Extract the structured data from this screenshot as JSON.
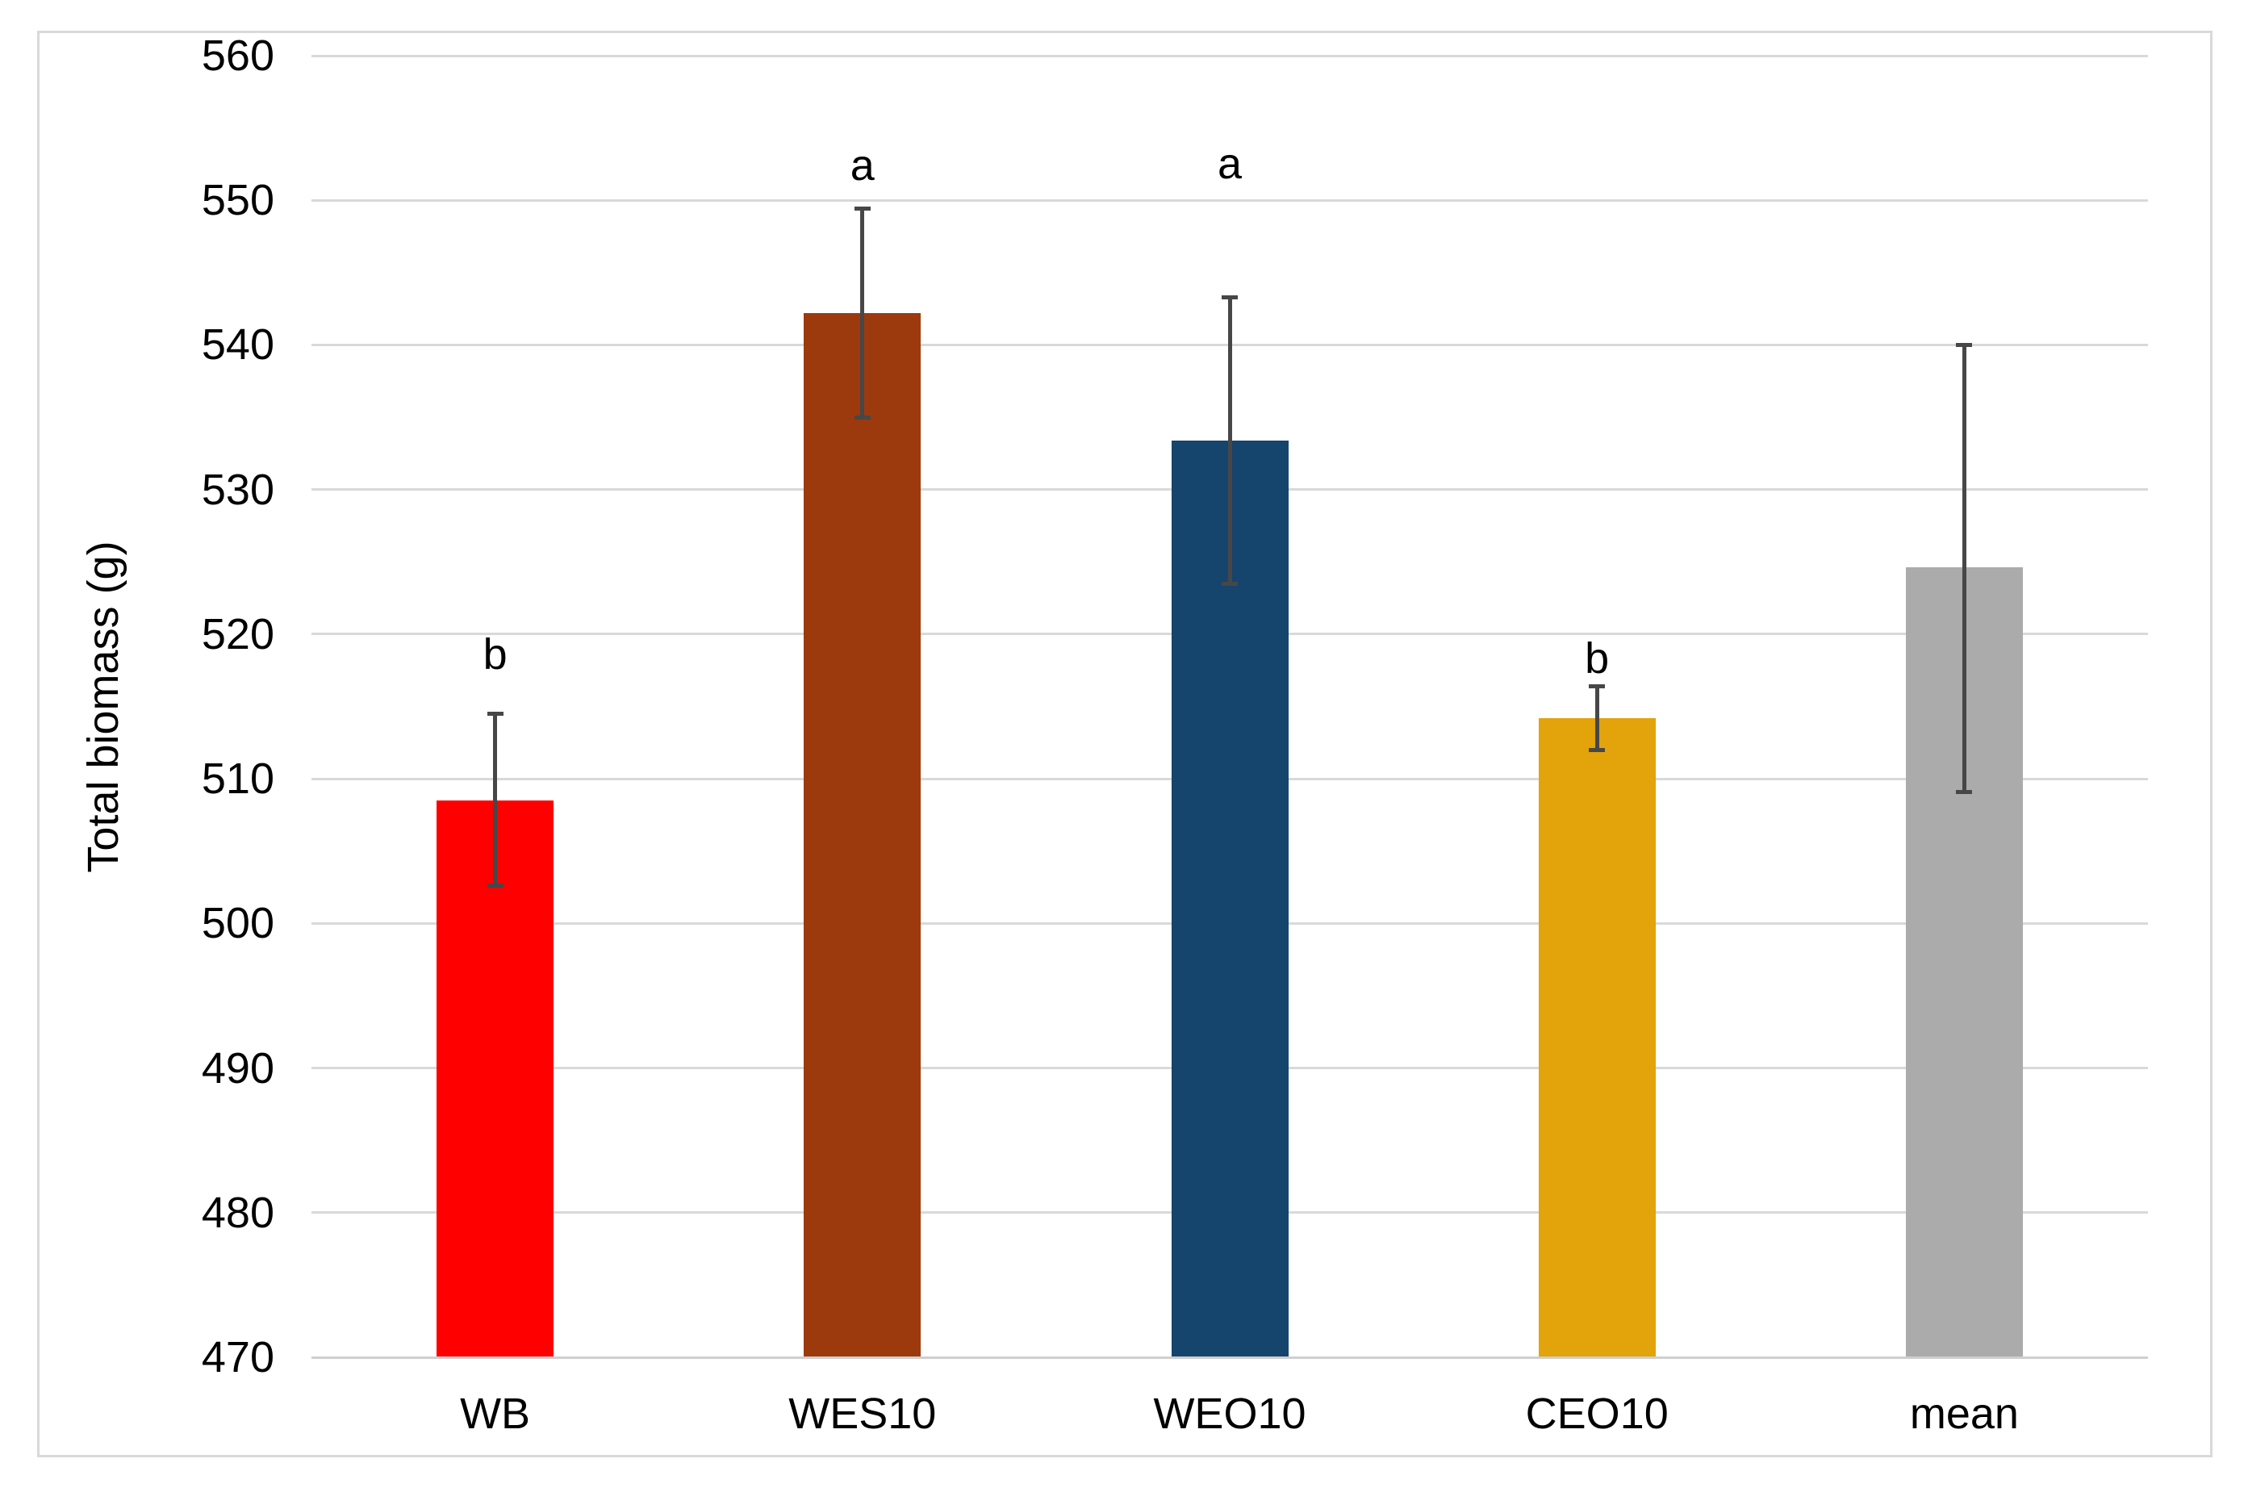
{
  "figure": {
    "background": "#FFFFFF",
    "border_color": "#D9D9D9"
  },
  "chart_data": {
    "type": "bar",
    "title": "",
    "xlabel": "",
    "ylabel": "Total biomass (g)",
    "ylim": [
      470,
      560
    ],
    "ytick_step": 10,
    "yticks": [
      470,
      480,
      490,
      500,
      510,
      520,
      530,
      540,
      550,
      560
    ],
    "categories": [
      "WB",
      "WES10",
      "WEO10",
      "CEO10",
      "mean"
    ],
    "series": [
      {
        "name": "Total biomass",
        "values": [
          508.5,
          542.2,
          533.4,
          514.2,
          524.6
        ]
      }
    ],
    "error_bars": {
      "low": [
        502.6,
        535.0,
        523.5,
        512.0,
        509.1
      ],
      "high": [
        514.5,
        549.4,
        543.3,
        516.4,
        540.0
      ]
    },
    "sig_letters": [
      {
        "label": "b",
        "y": 518.6
      },
      {
        "label": "a",
        "y": 552.4
      },
      {
        "label": "a",
        "y": 552.5
      },
      {
        "label": "b",
        "y": 518.3
      },
      {
        "label": "",
        "y": null
      }
    ],
    "bar_colors": [
      "#FF0000",
      "#9C3A0D",
      "#15446C",
      "#E2A30B",
      "#ABABAB"
    ],
    "grid": true,
    "gridline_color": "#D9D9D9",
    "axis_line_color": "#D0CECE",
    "error_bar_color": "#474747",
    "legend": "none"
  }
}
